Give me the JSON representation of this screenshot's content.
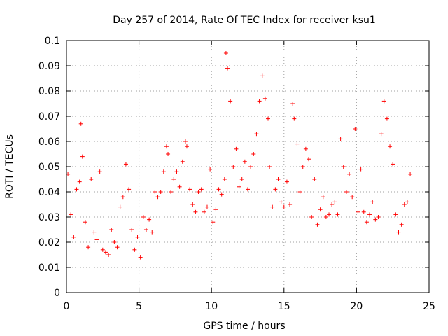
{
  "chart_data": {
    "type": "scatter",
    "title": "Day 257 of 2014, Rate Of TEC Index for receiver ksu1",
    "xlabel": "GPS time / hours",
    "ylabel": "ROTI / TECUs",
    "xlim": [
      0,
      25
    ],
    "ylim": [
      0,
      0.1
    ],
    "xticks": [
      "0",
      "5",
      "10",
      "15",
      "20",
      "25"
    ],
    "yticks": [
      "0",
      "0.01",
      "0.02",
      "0.03",
      "0.04",
      "0.05",
      "0.06",
      "0.07",
      "0.08",
      "0.09",
      "0.1"
    ],
    "grid": true,
    "marker": "+",
    "color": "#ff0000",
    "series": [
      {
        "x": [
          0.1,
          0.3,
          0.5,
          0.7,
          0.9,
          1.0,
          1.1,
          1.3,
          1.5,
          1.7,
          1.9,
          2.1,
          2.3,
          2.5,
          2.7,
          2.9,
          3.1,
          3.3,
          3.5,
          3.7,
          3.9,
          4.1,
          4.3,
          4.5,
          4.7,
          4.9,
          5.1,
          5.3,
          5.5,
          5.7,
          5.9,
          6.1,
          6.3,
          6.5,
          6.7,
          6.9,
          7.0,
          7.2,
          7.4,
          7.6,
          7.8,
          8.0,
          8.2,
          8.3,
          8.5,
          8.7,
          8.9,
          9.1,
          9.3,
          9.5,
          9.7,
          9.9,
          10.1,
          10.3,
          10.5,
          10.7,
          10.9,
          11.0,
          11.1,
          11.3,
          11.5,
          11.7,
          11.9,
          12.1,
          12.3,
          12.5,
          12.7,
          12.9,
          13.1,
          13.3,
          13.5,
          13.7,
          13.9,
          14.0,
          14.2,
          14.4,
          14.6,
          14.8,
          15.0,
          15.2,
          15.4,
          15.6,
          15.7,
          15.9,
          16.1,
          16.3,
          16.5,
          16.7,
          16.9,
          17.1,
          17.3,
          17.5,
          17.7,
          17.9,
          18.1,
          18.3,
          18.5,
          18.7,
          18.9,
          19.1,
          19.3,
          19.5,
          19.7,
          19.9,
          20.1,
          20.3,
          20.5,
          20.7,
          20.9,
          21.1,
          21.3,
          21.5,
          21.7,
          21.9,
          22.1,
          22.3,
          22.5,
          22.7,
          22.9,
          23.1,
          23.3,
          23.5,
          23.7
        ],
        "y": [
          0.047,
          0.031,
          0.022,
          0.041,
          0.044,
          0.067,
          0.054,
          0.028,
          0.018,
          0.045,
          0.024,
          0.021,
          0.048,
          0.017,
          0.016,
          0.015,
          0.025,
          0.02,
          0.018,
          0.034,
          0.038,
          0.051,
          0.041,
          0.025,
          0.017,
          0.022,
          0.014,
          0.03,
          0.025,
          0.029,
          0.024,
          0.04,
          0.038,
          0.04,
          0.048,
          0.058,
          0.055,
          0.04,
          0.045,
          0.048,
          0.042,
          0.052,
          0.06,
          0.058,
          0.041,
          0.035,
          0.032,
          0.04,
          0.041,
          0.032,
          0.034,
          0.049,
          0.028,
          0.033,
          0.041,
          0.039,
          0.045,
          0.095,
          0.089,
          0.076,
          0.05,
          0.057,
          0.042,
          0.045,
          0.052,
          0.041,
          0.05,
          0.055,
          0.063,
          0.076,
          0.086,
          0.077,
          0.069,
          0.05,
          0.034,
          0.041,
          0.045,
          0.036,
          0.034,
          0.044,
          0.035,
          0.075,
          0.069,
          0.059,
          0.04,
          0.05,
          0.057,
          0.053,
          0.03,
          0.045,
          0.027,
          0.033,
          0.038,
          0.03,
          0.031,
          0.035,
          0.036,
          0.031,
          0.061,
          0.05,
          0.04,
          0.047,
          0.038,
          0.065,
          0.032,
          0.049,
          0.032,
          0.028,
          0.031,
          0.036,
          0.029,
          0.03,
          0.063,
          0.076,
          0.069,
          0.058,
          0.051,
          0.031,
          0.024,
          0.027,
          0.035,
          0.036,
          0.047
        ]
      }
    ]
  }
}
